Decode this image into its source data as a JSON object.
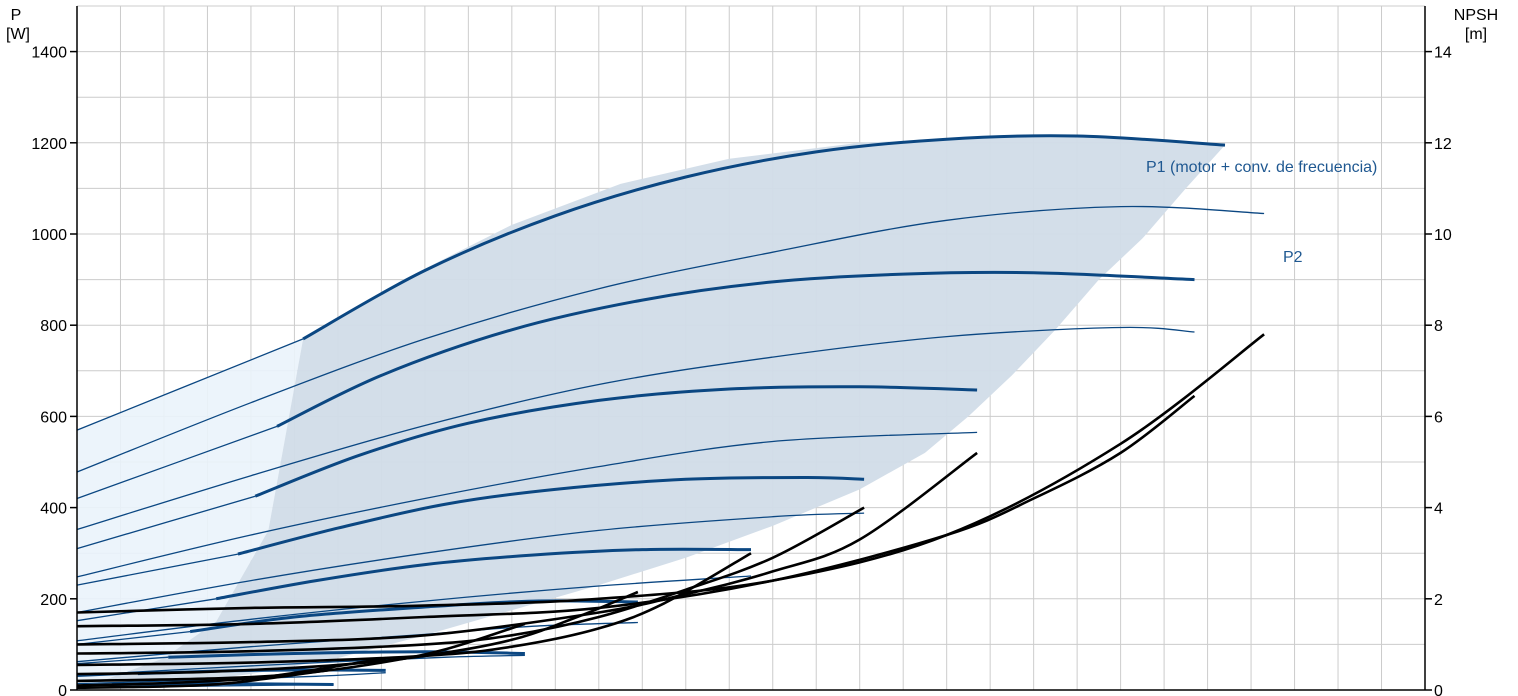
{
  "chart_data": {
    "type": "line",
    "title": "",
    "xlabel": "",
    "left_axis": {
      "label_line1": "P",
      "label_line2": "[W]",
      "ticks": [
        0,
        200,
        400,
        600,
        800,
        1000,
        1200,
        1400
      ],
      "range": [
        0,
        1500
      ]
    },
    "right_axis": {
      "label_line1": "NPSH",
      "label_line2": "[m]",
      "ticks": [
        0,
        2,
        4,
        6,
        8,
        10,
        12,
        14
      ],
      "range": [
        0,
        15
      ]
    },
    "x_range": [
      0,
      31
    ],
    "grid": true,
    "colors": {
      "p1": "#0b4782",
      "p2": "#0b4782",
      "npsh": "#000000",
      "envelope": "#d1dce8",
      "extended": "#eaf3fb",
      "label": "#1f5891",
      "grid": "#cccccc"
    },
    "labels": {
      "p1": "P1 (motor + conv. de frecuencia)",
      "p2": "P2"
    },
    "envelope_polygon": [
      [
        5.2,
        770
      ],
      [
        7.5,
        900
      ],
      [
        10,
        1020
      ],
      [
        12.5,
        1110
      ],
      [
        15,
        1165
      ],
      [
        18,
        1200
      ],
      [
        21,
        1212
      ],
      [
        24,
        1212
      ],
      [
        26.4,
        1195
      ],
      [
        25.5,
        1100
      ],
      [
        24.5,
        990
      ],
      [
        23.5,
        900
      ],
      [
        22.5,
        790
      ],
      [
        21.5,
        690
      ],
      [
        20.5,
        600
      ],
      [
        19.5,
        520
      ],
      [
        18,
        440
      ],
      [
        16,
        360
      ],
      [
        14,
        290
      ],
      [
        12,
        230
      ],
      [
        10,
        175
      ],
      [
        8,
        120
      ],
      [
        6,
        70
      ],
      [
        4,
        35
      ],
      [
        2,
        12
      ],
      [
        0,
        0
      ],
      [
        2,
        70
      ],
      [
        3.2,
        150
      ],
      [
        4.4,
        350
      ],
      [
        5.2,
        770
      ]
    ],
    "extension_polygon": [
      [
        0,
        570
      ],
      [
        5.2,
        770
      ],
      [
        4.4,
        350
      ],
      [
        3.2,
        150
      ],
      [
        2,
        70
      ],
      [
        0,
        0
      ]
    ],
    "p1_series": [
      {
        "x": [
          5.2,
          8,
          11,
          14,
          17,
          20,
          23,
          26.4
        ],
        "y": [
          770,
          920,
          1040,
          1125,
          1180,
          1208,
          1215,
          1195
        ],
        "ext": [
          [
            0,
            570
          ],
          [
            5.2,
            770
          ]
        ]
      },
      {
        "x": [
          4.6,
          7,
          10,
          13,
          16,
          19,
          22,
          25.7
        ],
        "y": [
          578,
          690,
          790,
          855,
          895,
          912,
          915,
          900
        ],
        "ext": [
          [
            0,
            420
          ],
          [
            4.6,
            578
          ]
        ]
      },
      {
        "x": [
          4.1,
          6.5,
          9,
          12,
          15,
          18,
          20.7
        ],
        "y": [
          425,
          515,
          585,
          635,
          660,
          665,
          658
        ],
        "ext": [
          [
            0,
            310
          ],
          [
            4.1,
            425
          ]
        ]
      },
      {
        "x": [
          3.7,
          6,
          8.5,
          11,
          14,
          16.8,
          18.1
        ],
        "y": [
          298,
          355,
          408,
          440,
          462,
          466,
          462
        ],
        "ext": [
          [
            0,
            230
          ],
          [
            3.7,
            298
          ]
        ]
      },
      {
        "x": [
          3.2,
          5.5,
          8,
          10.5,
          13,
          15.5
        ],
        "y": [
          200,
          240,
          275,
          296,
          308,
          308
        ],
        "ext": [
          [
            0,
            152
          ],
          [
            3.2,
            200
          ]
        ]
      },
      {
        "x": [
          2.6,
          5,
          8,
          10.5,
          12.9
        ],
        "y": [
          128,
          160,
          182,
          195,
          193
        ],
        "ext": [
          [
            0,
            100
          ],
          [
            2.6,
            128
          ]
        ]
      },
      {
        "x": [
          2.1,
          5,
          8,
          10.3
        ],
        "y": [
          72,
          80,
          84,
          80
        ],
        "ext": [
          [
            0,
            58
          ],
          [
            2.1,
            72
          ]
        ]
      },
      {
        "x": [
          1.4,
          3.5,
          5.5,
          7.1
        ],
        "y": [
          36,
          42,
          44,
          43
        ],
        "ext": [
          [
            0,
            30
          ],
          [
            1.4,
            36
          ]
        ]
      },
      {
        "x": [
          0.8,
          3,
          5.9
        ],
        "y": [
          12,
          14,
          12
        ],
        "ext": [
          [
            0,
            10
          ],
          [
            0.8,
            12
          ]
        ]
      }
    ],
    "p2_series": [
      {
        "x": [
          0,
          4,
          8,
          12,
          16,
          20,
          24,
          27.3
        ],
        "y": [
          478,
          630,
          770,
          880,
          960,
          1030,
          1060,
          1045
        ]
      },
      {
        "x": [
          0,
          4,
          8,
          12,
          16,
          20,
          24,
          25.7
        ],
        "y": [
          352,
          470,
          580,
          670,
          730,
          775,
          795,
          785
        ]
      },
      {
        "x": [
          0,
          4,
          8,
          12,
          16,
          20.7
        ],
        "y": [
          248,
          340,
          420,
          490,
          545,
          565
        ]
      },
      {
        "x": [
          0,
          4,
          8,
          12,
          16,
          18.1
        ],
        "y": [
          170,
          240,
          300,
          350,
          380,
          388
        ]
      },
      {
        "x": [
          0,
          4,
          8,
          12,
          15.5
        ],
        "y": [
          108,
          155,
          195,
          228,
          250
        ]
      },
      {
        "x": [
          0,
          4,
          8,
          10.5,
          12.9
        ],
        "y": [
          62,
          95,
          122,
          140,
          148
        ]
      },
      {
        "x": [
          0,
          3,
          6,
          8.5,
          10.3
        ],
        "y": [
          32,
          48,
          62,
          72,
          76
        ]
      },
      {
        "x": [
          0,
          3,
          5.5,
          7.1
        ],
        "y": [
          14,
          22,
          30,
          38
        ]
      },
      {
        "x": [
          0,
          2.5,
          5.9
        ],
        "y": [
          5,
          8,
          12
        ]
      }
    ],
    "npsh_series": [
      {
        "x": [
          0,
          4,
          8,
          12,
          16,
          20,
          24,
          27.3
        ],
        "y": [
          1.7,
          1.8,
          1.85,
          2.0,
          2.4,
          3.4,
          5.4,
          7.8
        ]
      },
      {
        "x": [
          0,
          4,
          8,
          12,
          16,
          20,
          22,
          24,
          25.7
        ],
        "y": [
          1.4,
          1.45,
          1.6,
          1.8,
          2.4,
          3.4,
          4.2,
          5.2,
          6.45
        ]
      },
      {
        "x": [
          0,
          4,
          8,
          12,
          14,
          16,
          18,
          20.7
        ],
        "y": [
          1.0,
          1.05,
          1.2,
          1.7,
          2.1,
          2.6,
          3.3,
          5.2
        ]
      },
      {
        "x": [
          0,
          4,
          8,
          10,
          12,
          14,
          16,
          18.1
        ],
        "y": [
          0.8,
          0.85,
          1.0,
          1.2,
          1.6,
          2.2,
          2.9,
          4.0
        ]
      },
      {
        "x": [
          0,
          4,
          8,
          10,
          12,
          13.5,
          15.5
        ],
        "y": [
          0.55,
          0.6,
          0.75,
          0.95,
          1.35,
          1.9,
          3.0
        ]
      },
      {
        "x": [
          0,
          3,
          6,
          8,
          10,
          11.5,
          12.9
        ],
        "y": [
          0.35,
          0.4,
          0.55,
          0.75,
          1.1,
          1.6,
          2.15
        ]
      },
      {
        "x": [
          0,
          3,
          5,
          7,
          8.5,
          10.3
        ],
        "y": [
          0.2,
          0.25,
          0.35,
          0.6,
          0.9,
          1.45
        ]
      },
      {
        "x": [
          0,
          2,
          4,
          5.5,
          7.1
        ],
        "y": [
          0.1,
          0.15,
          0.25,
          0.45,
          0.7
        ]
      },
      {
        "x": [
          0,
          2,
          3.5,
          5.9
        ],
        "y": [
          0.05,
          0.08,
          0.15,
          0.45
        ]
      }
    ]
  }
}
